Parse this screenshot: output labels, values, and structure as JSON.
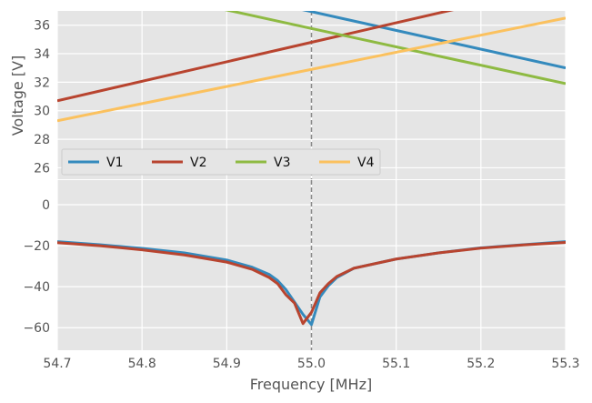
{
  "chart_data": {
    "type": "line",
    "xlabel": "Frequency [MHz]",
    "x_ticks": [
      54.7,
      54.8,
      54.9,
      55.0,
      55.1,
      55.2,
      55.3
    ],
    "xlim": [
      54.7,
      55.3
    ],
    "vline_x": 55.0,
    "grid": true,
    "style": "ggplot",
    "top_panel": {
      "ylabel": "Voltage [V]",
      "ylim": [
        25.2,
        37.0
      ],
      "y_ticks": [
        26,
        28,
        30,
        32,
        34,
        36
      ],
      "legend_placement": "bottom-left",
      "series": [
        {
          "name": "V1",
          "color": "#348ABD",
          "x": [
            54.7,
            55.0,
            55.3
          ],
          "y": [
            40.9,
            36.95,
            33.0
          ]
        },
        {
          "name": "V2",
          "color": "#B8442F",
          "x": [
            54.7,
            55.0,
            55.3
          ],
          "y": [
            30.7,
            34.8,
            38.9
          ]
        },
        {
          "name": "V3",
          "color": "#8EBA42",
          "x": [
            54.7,
            55.0,
            55.3
          ],
          "y": [
            39.65,
            35.77,
            31.9
          ]
        },
        {
          "name": "V4",
          "color": "#FBC15E",
          "x": [
            54.7,
            55.0,
            55.3
          ],
          "y": [
            29.3,
            32.9,
            36.5
          ]
        }
      ]
    },
    "bottom_panel": {
      "ylim": [
        -71,
        12
      ],
      "y_ticks": [
        -60,
        -40,
        -20,
        0
      ],
      "series": [
        {
          "color": "#348ABD",
          "x": [
            54.7,
            54.75,
            54.8,
            54.85,
            54.9,
            54.93,
            54.95,
            54.96,
            54.97,
            54.98,
            54.99,
            55.0,
            55.01,
            55.02,
            55.03,
            55.05,
            55.1,
            55.15,
            55.2,
            55.25,
            55.3
          ],
          "y": [
            -18,
            -19.5,
            -21.3,
            -23.5,
            -27,
            -30.5,
            -34,
            -37,
            -41.5,
            -47.5,
            -53.5,
            -58.5,
            -45,
            -39.5,
            -35.5,
            -31,
            -26.5,
            -23.5,
            -21,
            -19.5,
            -18
          ]
        },
        {
          "color": "#B8442F",
          "x": [
            54.7,
            54.75,
            54.8,
            54.85,
            54.9,
            54.93,
            54.95,
            54.96,
            54.97,
            54.98,
            54.99,
            55.0,
            55.01,
            55.02,
            55.03,
            55.05,
            55.1,
            55.15,
            55.2,
            55.25,
            55.3
          ],
          "y": [
            -18.5,
            -20,
            -22,
            -24.5,
            -28,
            -31.5,
            -35.5,
            -38.5,
            -44,
            -48,
            -58,
            -52.5,
            -43,
            -38.5,
            -35,
            -31,
            -26.5,
            -23.5,
            -21.2,
            -19.6,
            -18.4
          ]
        }
      ]
    }
  }
}
